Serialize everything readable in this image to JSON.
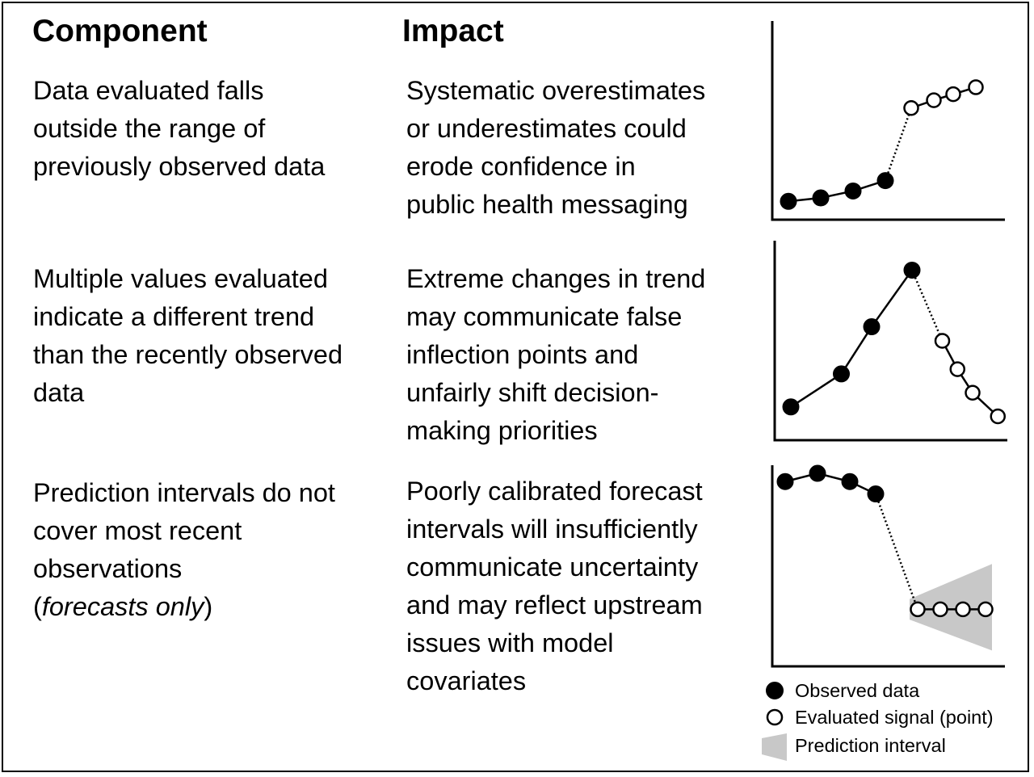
{
  "headers": {
    "component": "Component",
    "impact": "Impact"
  },
  "rows": [
    {
      "component": [
        "Data evaluated falls",
        "outside the range of",
        "previously observed data"
      ],
      "impact": [
        "Systematic overestimates",
        "or underestimates could",
        "erode confidence in",
        "public health messaging"
      ],
      "plot": {
        "observed": [
          [
            0,
            1.0
          ],
          [
            1,
            1.4
          ],
          [
            2,
            2.2
          ],
          [
            3,
            3.4
          ]
        ],
        "evaluated": [
          [
            3.8,
            11.8
          ],
          [
            4.5,
            12.7
          ],
          [
            5.1,
            13.4
          ],
          [
            5.8,
            14.2
          ]
        ],
        "connector": "dotted"
      }
    },
    {
      "component": [
        "Multiple values evaluated",
        "indicate a different trend",
        "than the recently observed",
        "data"
      ],
      "impact": [
        "Extreme changes in trend",
        "may communicate false",
        "inflection points and",
        "unfairly shift decision-",
        "making priorities"
      ],
      "plot": {
        "observed": [
          [
            0,
            1.0
          ],
          [
            1,
            2.4
          ],
          [
            1.6,
            4.4
          ],
          [
            2.4,
            6.8
          ]
        ],
        "evaluated": [
          [
            3.0,
            3.8
          ],
          [
            3.3,
            2.6
          ],
          [
            3.6,
            1.6
          ],
          [
            4.1,
            0.6
          ]
        ],
        "connector": "dotted"
      }
    },
    {
      "component": [
        "Prediction intervals do not",
        "cover most recent",
        "observations"
      ],
      "component_note": {
        "open": "(",
        "italic": "forecasts only",
        "close": ")"
      },
      "impact": [
        "Poorly calibrated forecast",
        "intervals will insufficiently",
        "communicate uncertainty",
        "and may reflect upstream",
        "issues with model",
        "covariates"
      ],
      "plot": {
        "observed": [
          [
            0,
            8.5
          ],
          [
            1,
            8.9
          ],
          [
            2,
            8.5
          ],
          [
            2.8,
            7.9
          ]
        ],
        "evaluated": [
          [
            4.1,
            2.3
          ],
          [
            4.8,
            2.3
          ],
          [
            5.5,
            2.3
          ],
          [
            6.2,
            2.3
          ]
        ],
        "interval": {
          "start_lower": 1.8,
          "start_upper": 2.8,
          "end_lower": 0.3,
          "end_upper": 4.5
        },
        "connector": "dotted"
      }
    }
  ],
  "legend": {
    "observed": "Observed data",
    "evaluated": "Evaluated signal (point)",
    "interval": "Prediction interval"
  },
  "colors": {
    "interval_fill": "#c8c8c8",
    "marker_fill_observed": "#000000",
    "marker_fill_evaluated": "#ffffff"
  }
}
